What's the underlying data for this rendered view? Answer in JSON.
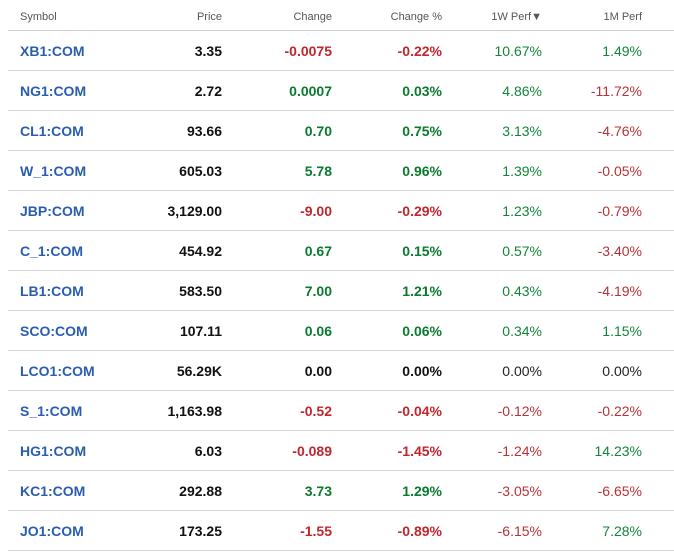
{
  "headers": {
    "symbol": "Symbol",
    "price": "Price",
    "change": "Change",
    "change_pct": "Change %",
    "perf_1w": "1W Perf▼",
    "perf_1m": "1M Perf"
  },
  "colors": {
    "positive": "#0a7a2e",
    "negative": "#c0262d",
    "link": "#2a5db0"
  },
  "rows": [
    {
      "symbol": "XB1:COM",
      "price": "3.35",
      "change": "-0.0075",
      "change_pct": "-0.22%",
      "perf_1w": "10.67%",
      "perf_1m": "1.49%"
    },
    {
      "symbol": "NG1:COM",
      "price": "2.72",
      "change": "0.0007",
      "change_pct": "0.03%",
      "perf_1w": "4.86%",
      "perf_1m": "-11.72%"
    },
    {
      "symbol": "CL1:COM",
      "price": "93.66",
      "change": "0.70",
      "change_pct": "0.75%",
      "perf_1w": "3.13%",
      "perf_1m": "-4.76%"
    },
    {
      "symbol": "W_1:COM",
      "price": "605.03",
      "change": "5.78",
      "change_pct": "0.96%",
      "perf_1w": "1.39%",
      "perf_1m": "-0.05%"
    },
    {
      "symbol": "JBP:COM",
      "price": "3,129.00",
      "change": "-9.00",
      "change_pct": "-0.29%",
      "perf_1w": "1.23%",
      "perf_1m": "-0.79%"
    },
    {
      "symbol": "C_1:COM",
      "price": "454.92",
      "change": "0.67",
      "change_pct": "0.15%",
      "perf_1w": "0.57%",
      "perf_1m": "-3.40%"
    },
    {
      "symbol": "LB1:COM",
      "price": "583.50",
      "change": "7.00",
      "change_pct": "1.21%",
      "perf_1w": "0.43%",
      "perf_1m": "-4.19%"
    },
    {
      "symbol": "SCO:COM",
      "price": "107.11",
      "change": "0.06",
      "change_pct": "0.06%",
      "perf_1w": "0.34%",
      "perf_1m": "1.15%"
    },
    {
      "symbol": "LCO1:COM",
      "price": "56.29K",
      "change": "0.00",
      "change_pct": "0.00%",
      "perf_1w": "0.00%",
      "perf_1m": "0.00%"
    },
    {
      "symbol": "S_1:COM",
      "price": "1,163.98",
      "change": "-0.52",
      "change_pct": "-0.04%",
      "perf_1w": "-0.12%",
      "perf_1m": "-0.22%"
    },
    {
      "symbol": "HG1:COM",
      "price": "6.03",
      "change": "-0.089",
      "change_pct": "-1.45%",
      "perf_1w": "-1.24%",
      "perf_1m": "14.23%"
    },
    {
      "symbol": "KC1:COM",
      "price": "292.88",
      "change": "3.73",
      "change_pct": "1.29%",
      "perf_1w": "-3.05%",
      "perf_1m": "-6.65%"
    },
    {
      "symbol": "JO1:COM",
      "price": "173.25",
      "change": "-1.55",
      "change_pct": "-0.89%",
      "perf_1w": "-6.15%",
      "perf_1m": "7.28%"
    }
  ]
}
